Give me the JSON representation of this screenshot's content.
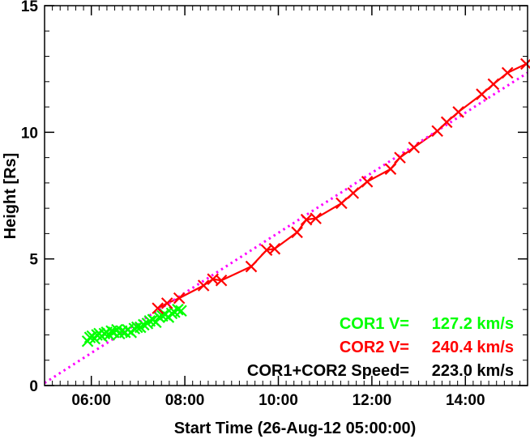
{
  "chart_data": {
    "type": "scatter",
    "xlabel": "Start Time (26-Aug-12 05:00:00)",
    "ylabel": "Height [Rs]",
    "x_unit": "hours",
    "xlim": [
      5.0,
      15.33
    ],
    "ylim": [
      0,
      15
    ],
    "x_ticks": [
      {
        "value": 6,
        "label": "06:00"
      },
      {
        "value": 8,
        "label": "08:00"
      },
      {
        "value": 10,
        "label": "10:00"
      },
      {
        "value": 12,
        "label": "12:00"
      },
      {
        "value": 14,
        "label": "14:00"
      }
    ],
    "y_ticks": [
      {
        "value": 0,
        "label": "0"
      },
      {
        "value": 5,
        "label": "5"
      },
      {
        "value": 10,
        "label": "10"
      },
      {
        "value": 15,
        "label": "15"
      }
    ],
    "grid": false,
    "series": [
      {
        "name": "COR1",
        "color": "#00ff00",
        "marker": "x",
        "connected": true,
        "points": [
          [
            5.92,
            1.75
          ],
          [
            5.97,
            1.9
          ],
          [
            6.02,
            1.95
          ],
          [
            6.07,
            1.85
          ],
          [
            6.12,
            2.0
          ],
          [
            6.17,
            2.05
          ],
          [
            6.22,
            1.95
          ],
          [
            6.28,
            2.05
          ],
          [
            6.33,
            2.1
          ],
          [
            6.38,
            2.0
          ],
          [
            6.43,
            2.15
          ],
          [
            6.48,
            2.1
          ],
          [
            6.55,
            2.2
          ],
          [
            6.6,
            2.05
          ],
          [
            6.65,
            2.15
          ],
          [
            6.72,
            2.1
          ],
          [
            6.78,
            2.2
          ],
          [
            6.85,
            2.1
          ],
          [
            6.92,
            2.25
          ],
          [
            6.98,
            2.3
          ],
          [
            7.05,
            2.3
          ],
          [
            7.12,
            2.4
          ],
          [
            7.2,
            2.45
          ],
          [
            7.25,
            2.55
          ],
          [
            7.32,
            2.6
          ],
          [
            7.38,
            2.5
          ],
          [
            7.45,
            2.7
          ],
          [
            7.52,
            2.75
          ],
          [
            7.58,
            2.8
          ],
          [
            7.65,
            2.7
          ],
          [
            7.72,
            2.85
          ],
          [
            7.78,
            2.9
          ],
          [
            7.85,
            3.0
          ],
          [
            7.92,
            2.95
          ]
        ]
      },
      {
        "name": "COR2",
        "color": "#ff0000",
        "marker": "x",
        "connected": true,
        "points": [
          [
            7.42,
            3.05
          ],
          [
            7.62,
            3.25
          ],
          [
            7.88,
            3.45
          ],
          [
            8.4,
            3.95
          ],
          [
            8.6,
            4.2
          ],
          [
            8.78,
            4.15
          ],
          [
            9.42,
            4.7
          ],
          [
            9.75,
            5.35
          ],
          [
            9.92,
            5.4
          ],
          [
            10.4,
            6.05
          ],
          [
            10.6,
            6.55
          ],
          [
            10.8,
            6.6
          ],
          [
            11.35,
            7.2
          ],
          [
            11.6,
            7.6
          ],
          [
            11.9,
            8.05
          ],
          [
            12.4,
            8.55
          ],
          [
            12.6,
            9.0
          ],
          [
            12.9,
            9.4
          ],
          [
            13.4,
            10.05
          ],
          [
            13.6,
            10.4
          ],
          [
            13.85,
            10.8
          ],
          [
            14.35,
            11.5
          ],
          [
            14.6,
            11.9
          ],
          [
            14.9,
            12.35
          ],
          [
            15.3,
            12.7
          ]
        ]
      }
    ],
    "fit_line": {
      "name": "COR1+COR2",
      "color": "#ff00ff",
      "style": "dotted",
      "x": [
        5.0,
        15.33
      ],
      "y": [
        0.1,
        12.35
      ]
    },
    "annotations": [
      {
        "id": "cor1",
        "label": "COR1 V=",
        "value": "127.2 km/s",
        "color": "#00ff00"
      },
      {
        "id": "cor2",
        "label": "COR2 V=",
        "value": "240.4 km/s",
        "color": "#ff0000"
      },
      {
        "id": "combined",
        "label": "COR1+COR2 Speed=",
        "value": "223.0 km/s",
        "color": "#000000"
      }
    ]
  }
}
